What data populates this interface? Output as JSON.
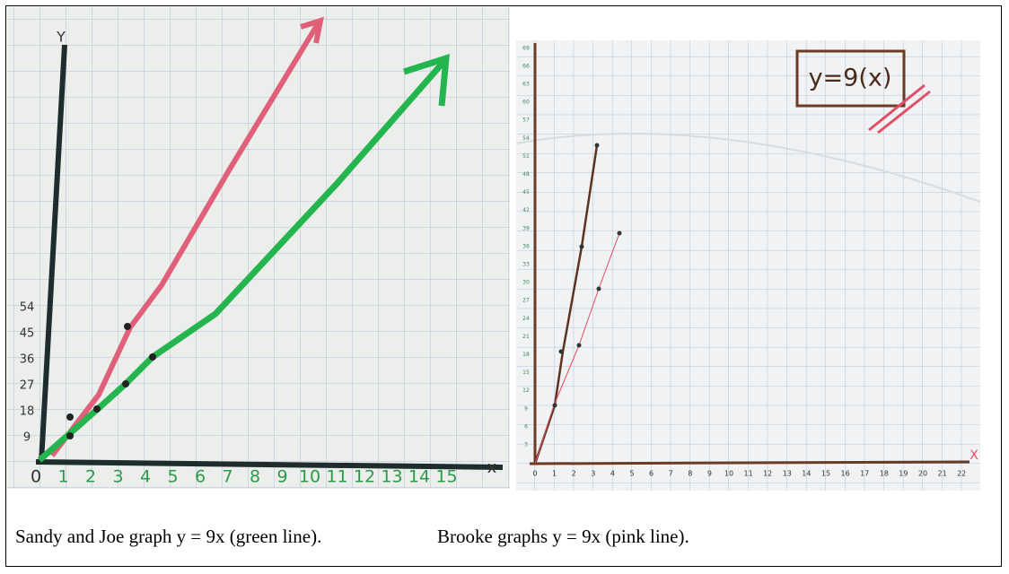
{
  "photos": [
    {
      "y_axis_label": "Y",
      "x_axis_label": "x",
      "x_ticks": [
        "0",
        "1",
        "2",
        "3",
        "4",
        "5",
        "6",
        "7",
        "8",
        "9",
        "10",
        "11",
        "12",
        "13",
        "14",
        "15"
      ],
      "y_ticks": [
        "9",
        "18",
        "27",
        "36",
        "45",
        "54"
      ]
    },
    {
      "box_label": "y=9(x)",
      "x_axis_label": "X",
      "x_ticks": [
        "0",
        "1",
        "2",
        "3",
        "4",
        "5",
        "6",
        "7",
        "8",
        "9",
        "10",
        "11",
        "12",
        "13",
        "14",
        "15",
        "16",
        "17",
        "18",
        "19",
        "20",
        "21",
        "22"
      ],
      "y_ticks": [
        "3",
        "6",
        "9",
        "12",
        "15",
        "18",
        "21",
        "24",
        "27",
        "30",
        "33",
        "36",
        "39",
        "42",
        "45",
        "48",
        "51",
        "54",
        "57",
        "60",
        "63",
        "66",
        "69"
      ]
    }
  ],
  "captions": [
    "Sandy and Joe graph y = 9x (green line).",
    "Brooke graphs y = 9x (pink line)."
  ]
}
